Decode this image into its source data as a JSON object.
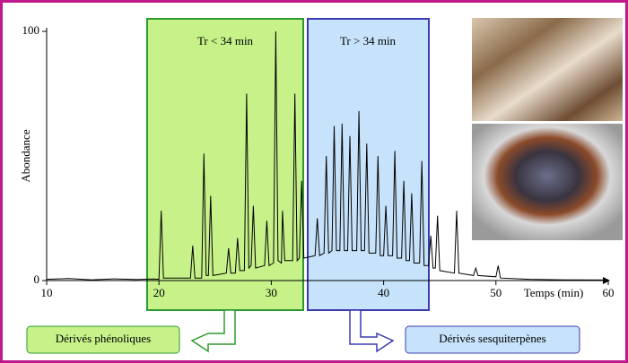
{
  "chart_data": {
    "type": "line",
    "x_label": "Temps (min)",
    "y_label": "Abondance",
    "color": "#000000",
    "xlim": [
      10,
      60
    ],
    "ylim": [
      0,
      100
    ],
    "xticks": [
      10,
      20,
      30,
      40,
      50,
      60
    ],
    "yticks": [
      0,
      100
    ],
    "x": [
      10,
      12,
      14,
      16,
      18,
      19.5,
      20,
      20.2,
      20.4,
      22.8,
      23,
      23.2,
      23.8,
      24,
      24.2,
      24.4,
      24.6,
      24.8,
      26,
      26.2,
      26.4,
      26.8,
      27,
      27.2,
      27.6,
      27.8,
      28,
      28.2,
      28.4,
      28.6,
      29.4,
      29.6,
      29.8,
      30.2,
      30.4,
      30.6,
      30.9,
      31,
      31.2,
      31.9,
      32.1,
      32.3,
      32.5,
      32.7,
      32.9,
      33.9,
      34.1,
      34.3,
      34.7,
      34.9,
      35.1,
      35.4,
      35.6,
      35.8,
      36.1,
      36.3,
      36.5,
      36.8,
      37,
      37.2,
      37.6,
      37.8,
      38,
      38.3,
      38.5,
      38.7,
      39.3,
      39.5,
      39.7,
      40,
      40.2,
      40.4,
      40.8,
      41,
      41.2,
      41.6,
      41.8,
      42,
      42.3,
      42.5,
      42.7,
      43.2,
      43.4,
      43.6,
      44,
      44.2,
      44.4,
      44.6,
      44.8,
      45,
      46.3,
      46.5,
      46.7,
      48,
      48.2,
      48.4,
      50,
      50.2,
      50.4,
      53,
      56,
      60
    ],
    "values": [
      0.5,
      0.8,
      0.3,
      0.7,
      0.4,
      0.6,
      0.5,
      28,
      1,
      1,
      14,
      1,
      1,
      51,
      2,
      2,
      34,
      2,
      3,
      13,
      3,
      3,
      17,
      4,
      4,
      75,
      5,
      6,
      30,
      5,
      6,
      24,
      6,
      7,
      100,
      8,
      7,
      28,
      8,
      8,
      75,
      8,
      9,
      40,
      9,
      10,
      25,
      10,
      11,
      50,
      11,
      12,
      62,
      12,
      12,
      63,
      12,
      12,
      58,
      12,
      12,
      68,
      12,
      12,
      55,
      11,
      11,
      50,
      10,
      10,
      30,
      10,
      10,
      52,
      9,
      9,
      40,
      8,
      8,
      35,
      7,
      7,
      48,
      6,
      6,
      18,
      5,
      5,
      26,
      4,
      3,
      28,
      3,
      2,
      5,
      2,
      1.5,
      6,
      1,
      0.5,
      0.3,
      0.2
    ],
    "regions": [
      {
        "label": "Tr < 34 min",
        "group": "Dérivés phénoliques"
      },
      {
        "label": "Tr > 34 min",
        "group": "Dérivés sesquiterpènes"
      }
    ]
  }
}
